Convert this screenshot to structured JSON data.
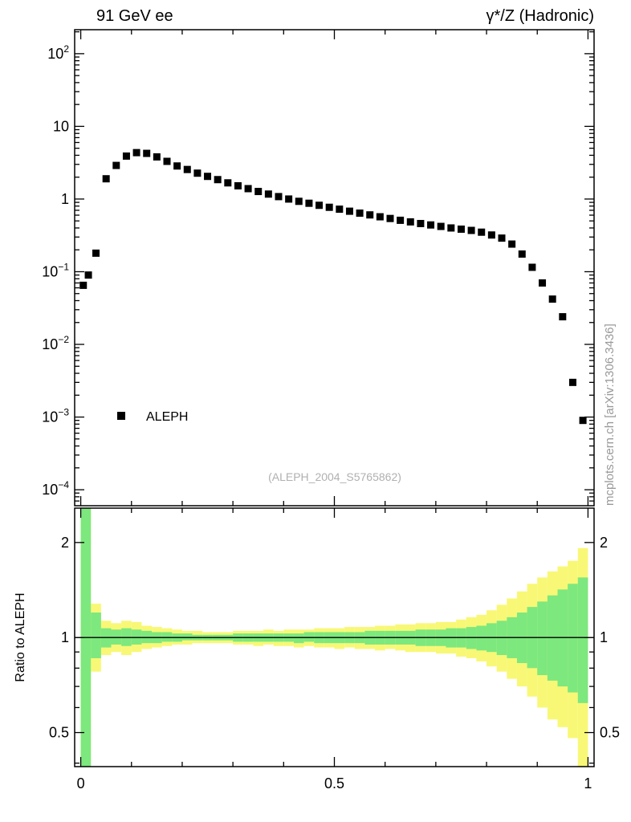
{
  "header": {
    "left": "91 GeV ee",
    "right": "γ*/Z (Hadronic)"
  },
  "credit_vertical": "mcplots.cern.ch [arXiv:1306.3436]",
  "watermark": "(ALEPH_2004_S5765862)",
  "legend": {
    "label": "ALEPH",
    "marker": "filled-square"
  },
  "colors": {
    "points": "#000000",
    "band_outer": "#f8f876",
    "band_inner": "#7de87d",
    "frame": "#000000",
    "watermark_text": "#b0b0b0",
    "credit_text": "#999999"
  },
  "axes": {
    "x": {
      "tick_labels": [
        "0",
        "0.5",
        "1"
      ],
      "tick_values": [
        0,
        0.5,
        1
      ],
      "minor_step": 0.1,
      "range": [
        0,
        1
      ]
    },
    "main_y": {
      "scale": "log",
      "tick_exponents": [
        2,
        1,
        0,
        -1,
        -2,
        -3,
        -4
      ]
    },
    "ratio_y": {
      "scale": "log",
      "tick_labels": [
        "2",
        "1",
        "0.5"
      ],
      "tick_values": [
        2,
        1,
        0.5
      ],
      "ylabel": "Ratio to ALEPH"
    }
  },
  "chart_data": [
    {
      "type": "scatter",
      "title": "91 GeV ee — γ*/Z (Hadronic)",
      "xlabel": "",
      "ylabel": "",
      "yscale": "log",
      "xlim": [
        0,
        1
      ],
      "ylim_log10": [
        -4.22,
        2.33
      ],
      "series": [
        {
          "name": "ALEPH",
          "marker": "filled-square",
          "color": "#000000",
          "x": [
            0.005,
            0.015,
            0.03,
            0.05,
            0.07,
            0.09,
            0.11,
            0.13,
            0.15,
            0.17,
            0.19,
            0.21,
            0.23,
            0.25,
            0.27,
            0.29,
            0.31,
            0.33,
            0.35,
            0.37,
            0.39,
            0.41,
            0.43,
            0.45,
            0.47,
            0.49,
            0.51,
            0.53,
            0.55,
            0.57,
            0.59,
            0.61,
            0.63,
            0.65,
            0.67,
            0.69,
            0.71,
            0.73,
            0.75,
            0.77,
            0.79,
            0.81,
            0.83,
            0.85,
            0.87,
            0.89,
            0.91,
            0.93,
            0.95,
            0.97,
            0.99
          ],
          "y": [
            0.065,
            0.09,
            0.18,
            1.9,
            2.9,
            3.9,
            4.35,
            4.25,
            3.8,
            3.3,
            2.85,
            2.55,
            2.27,
            2.05,
            1.85,
            1.67,
            1.52,
            1.39,
            1.27,
            1.17,
            1.08,
            1.0,
            0.93,
            0.875,
            0.82,
            0.77,
            0.725,
            0.68,
            0.64,
            0.605,
            0.57,
            0.54,
            0.51,
            0.485,
            0.46,
            0.44,
            0.42,
            0.4,
            0.385,
            0.37,
            0.35,
            0.32,
            0.29,
            0.24,
            0.175,
            0.115,
            0.07,
            0.042,
            0.024,
            0.003,
            0.0009
          ]
        }
      ]
    },
    {
      "type": "area",
      "title": "Ratio to ALEPH",
      "yscale": "log",
      "ylim": [
        0.39,
        2.57
      ],
      "x_range": [
        0,
        1
      ],
      "n_bins": 50,
      "reference_line": 1,
      "bands": {
        "outer": {
          "name": "outer-uncertainty-band",
          "color": "#f8f876",
          "lo": [
            0.3,
            0.78,
            0.88,
            0.9,
            0.88,
            0.9,
            0.92,
            0.93,
            0.94,
            0.95,
            0.95,
            0.96,
            0.96,
            0.96,
            0.96,
            0.95,
            0.95,
            0.94,
            0.95,
            0.94,
            0.94,
            0.93,
            0.94,
            0.93,
            0.93,
            0.92,
            0.93,
            0.92,
            0.92,
            0.91,
            0.92,
            0.91,
            0.9,
            0.9,
            0.9,
            0.89,
            0.89,
            0.87,
            0.86,
            0.84,
            0.81,
            0.78,
            0.74,
            0.7,
            0.65,
            0.6,
            0.55,
            0.52,
            0.48,
            0.38
          ],
          "hi": [
            2.65,
            1.28,
            1.13,
            1.11,
            1.13,
            1.12,
            1.09,
            1.08,
            1.07,
            1.06,
            1.05,
            1.05,
            1.04,
            1.04,
            1.04,
            1.05,
            1.05,
            1.05,
            1.06,
            1.05,
            1.06,
            1.06,
            1.06,
            1.07,
            1.07,
            1.07,
            1.08,
            1.08,
            1.08,
            1.09,
            1.09,
            1.1,
            1.1,
            1.11,
            1.11,
            1.12,
            1.12,
            1.14,
            1.16,
            1.18,
            1.22,
            1.27,
            1.33,
            1.4,
            1.48,
            1.55,
            1.62,
            1.68,
            1.75,
            1.92
          ]
        },
        "inner": {
          "name": "inner-uncertainty-band",
          "color": "#7de87d",
          "lo": [
            0.3,
            0.86,
            0.93,
            0.95,
            0.94,
            0.95,
            0.96,
            0.96,
            0.97,
            0.97,
            0.98,
            0.98,
            0.98,
            0.98,
            0.98,
            0.97,
            0.97,
            0.97,
            0.97,
            0.97,
            0.97,
            0.96,
            0.97,
            0.96,
            0.96,
            0.96,
            0.96,
            0.96,
            0.95,
            0.95,
            0.95,
            0.95,
            0.95,
            0.94,
            0.94,
            0.94,
            0.93,
            0.93,
            0.92,
            0.91,
            0.9,
            0.88,
            0.86,
            0.83,
            0.8,
            0.76,
            0.73,
            0.7,
            0.67,
            0.62
          ],
          "hi": [
            2.65,
            1.2,
            1.07,
            1.06,
            1.07,
            1.06,
            1.05,
            1.04,
            1.04,
            1.03,
            1.03,
            1.02,
            1.02,
            1.02,
            1.02,
            1.03,
            1.03,
            1.03,
            1.03,
            1.03,
            1.03,
            1.03,
            1.04,
            1.04,
            1.04,
            1.04,
            1.04,
            1.04,
            1.05,
            1.05,
            1.05,
            1.05,
            1.05,
            1.06,
            1.06,
            1.06,
            1.07,
            1.07,
            1.08,
            1.09,
            1.11,
            1.13,
            1.16,
            1.2,
            1.25,
            1.3,
            1.36,
            1.42,
            1.48,
            1.55
          ]
        }
      }
    }
  ]
}
